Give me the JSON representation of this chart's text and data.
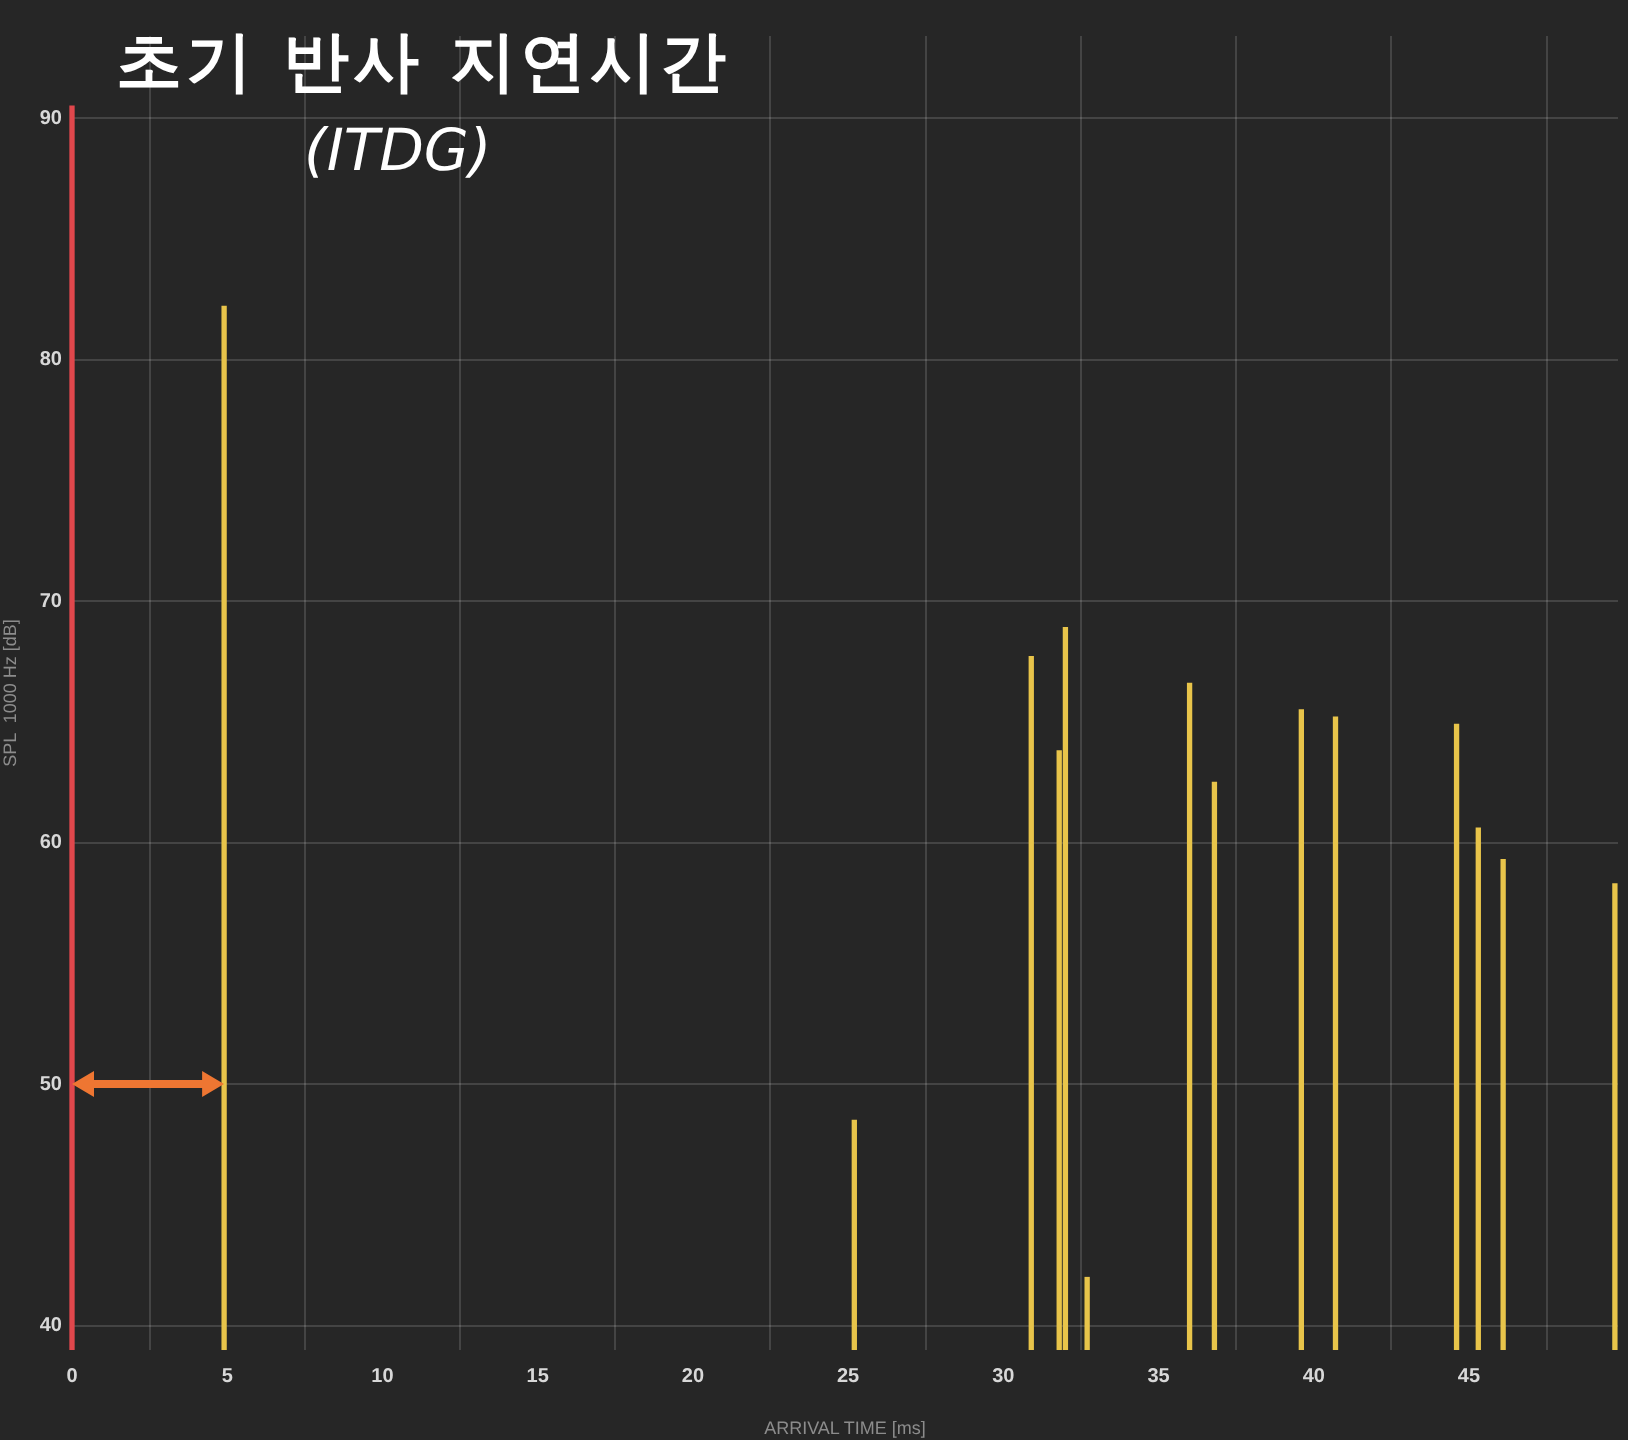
{
  "chart_data": {
    "type": "bar",
    "title": "초기 반사 지연시간",
    "subtitle": "(ITDG)",
    "xlabel": "ARRIVAL TIME [ms]",
    "ylabel": "SPL  1000 Hz [dB]",
    "series": [
      {
        "color": "#e0474c",
        "x": [
          0
        ],
        "values": [
          90.5
        ]
      },
      {
        "color": "#e8c44a",
        "x": [
          4.9,
          25.2,
          30.9,
          31.8,
          32.0,
          32.7,
          36.0,
          36.8,
          39.6,
          40.7,
          44.6,
          45.3,
          46.1,
          49.7
        ],
        "values": [
          82.2,
          48.5,
          67.7,
          63.8,
          68.9,
          42.0,
          66.6,
          62.5,
          65.5,
          65.2,
          64.9,
          60.6,
          59.3,
          58.3
        ]
      }
    ],
    "xlim": [
      0,
      49.8
    ],
    "xticks": [
      0,
      5,
      10,
      15,
      20,
      25,
      30,
      35,
      40,
      45
    ],
    "ylim": [
      39,
      93.4
    ],
    "yticks": [
      40,
      50,
      60,
      70,
      80,
      90
    ],
    "grid": true
  }
}
